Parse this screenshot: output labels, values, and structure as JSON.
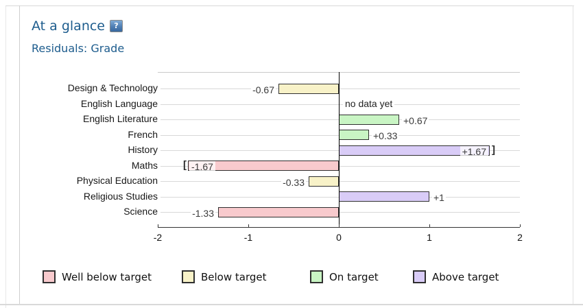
{
  "panel": {
    "title": "At a glance",
    "subtitle": "Residuals: Grade",
    "help_glyph": "?"
  },
  "chart_data": {
    "type": "bar",
    "orientation": "horizontal",
    "title": "Residuals: Grade",
    "xlim": [
      -2,
      2
    ],
    "x_ticks": [
      -2,
      -1,
      0,
      1,
      2
    ],
    "x_tick_labels": [
      "-2",
      "-1",
      "0",
      "1",
      "2"
    ],
    "grid": true,
    "no_data_text": "no data yet",
    "clamp_brackets": {
      "left": "[",
      "right": "]"
    },
    "rows": [
      {
        "label": "Design & Technology",
        "value": -0.67,
        "display": "-0.67",
        "status": "below",
        "clamped": false
      },
      {
        "label": "English Language",
        "value": null,
        "display": "no data yet",
        "status": "no-data",
        "clamped": false
      },
      {
        "label": "English Literature",
        "value": 0.67,
        "display": "+0.67",
        "status": "on",
        "clamped": false
      },
      {
        "label": "French",
        "value": 0.33,
        "display": "+0.33",
        "status": "on",
        "clamped": false
      },
      {
        "label": "History",
        "value": 1.67,
        "display": "+1.67",
        "status": "above",
        "clamped": true
      },
      {
        "label": "Maths",
        "value": -1.67,
        "display": "-1.67",
        "status": "well-below",
        "clamped": true
      },
      {
        "label": "Physical Education",
        "value": -0.33,
        "display": "-0.33",
        "status": "below",
        "clamped": false
      },
      {
        "label": "Religious Studies",
        "value": 1,
        "display": "+1",
        "status": "above",
        "clamped": false
      },
      {
        "label": "Science",
        "value": -1.33,
        "display": "-1.33",
        "status": "well-below",
        "clamped": false
      }
    ]
  },
  "legend": [
    {
      "label": "Well below target",
      "color": "#f8cacd",
      "status": "well-below"
    },
    {
      "label": "Below target",
      "color": "#f8f2c8",
      "status": "below"
    },
    {
      "label": "On target",
      "color": "#c9f5c4",
      "status": "on"
    },
    {
      "label": "Above target",
      "color": "#d9ccf7",
      "status": "above"
    }
  ],
  "colors": {
    "well-below": "#f8cacd",
    "below": "#f8f2c8",
    "on": "#c9f5c4",
    "above": "#d9ccf7",
    "bar_border": "#2f2f2f",
    "title_blue": "#1d5c8d",
    "gridline": "#d8d8d8"
  }
}
